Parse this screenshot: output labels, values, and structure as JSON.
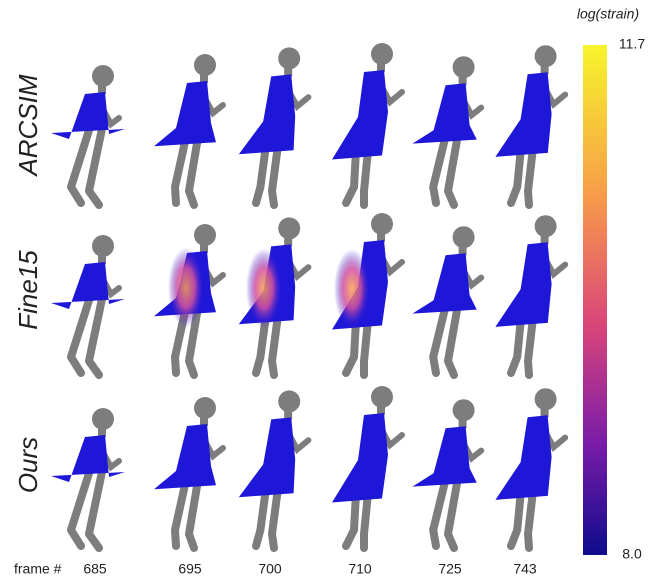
{
  "rows": [
    {
      "label": "ARCSIM"
    },
    {
      "label": "Fine15"
    },
    {
      "label": "Ours"
    }
  ],
  "frames": {
    "label": "frame #",
    "values": [
      "685",
      "695",
      "700",
      "710",
      "725",
      "743"
    ]
  },
  "colorbar": {
    "title": "log(strain)",
    "max": "11.7",
    "min": "8.0"
  }
}
